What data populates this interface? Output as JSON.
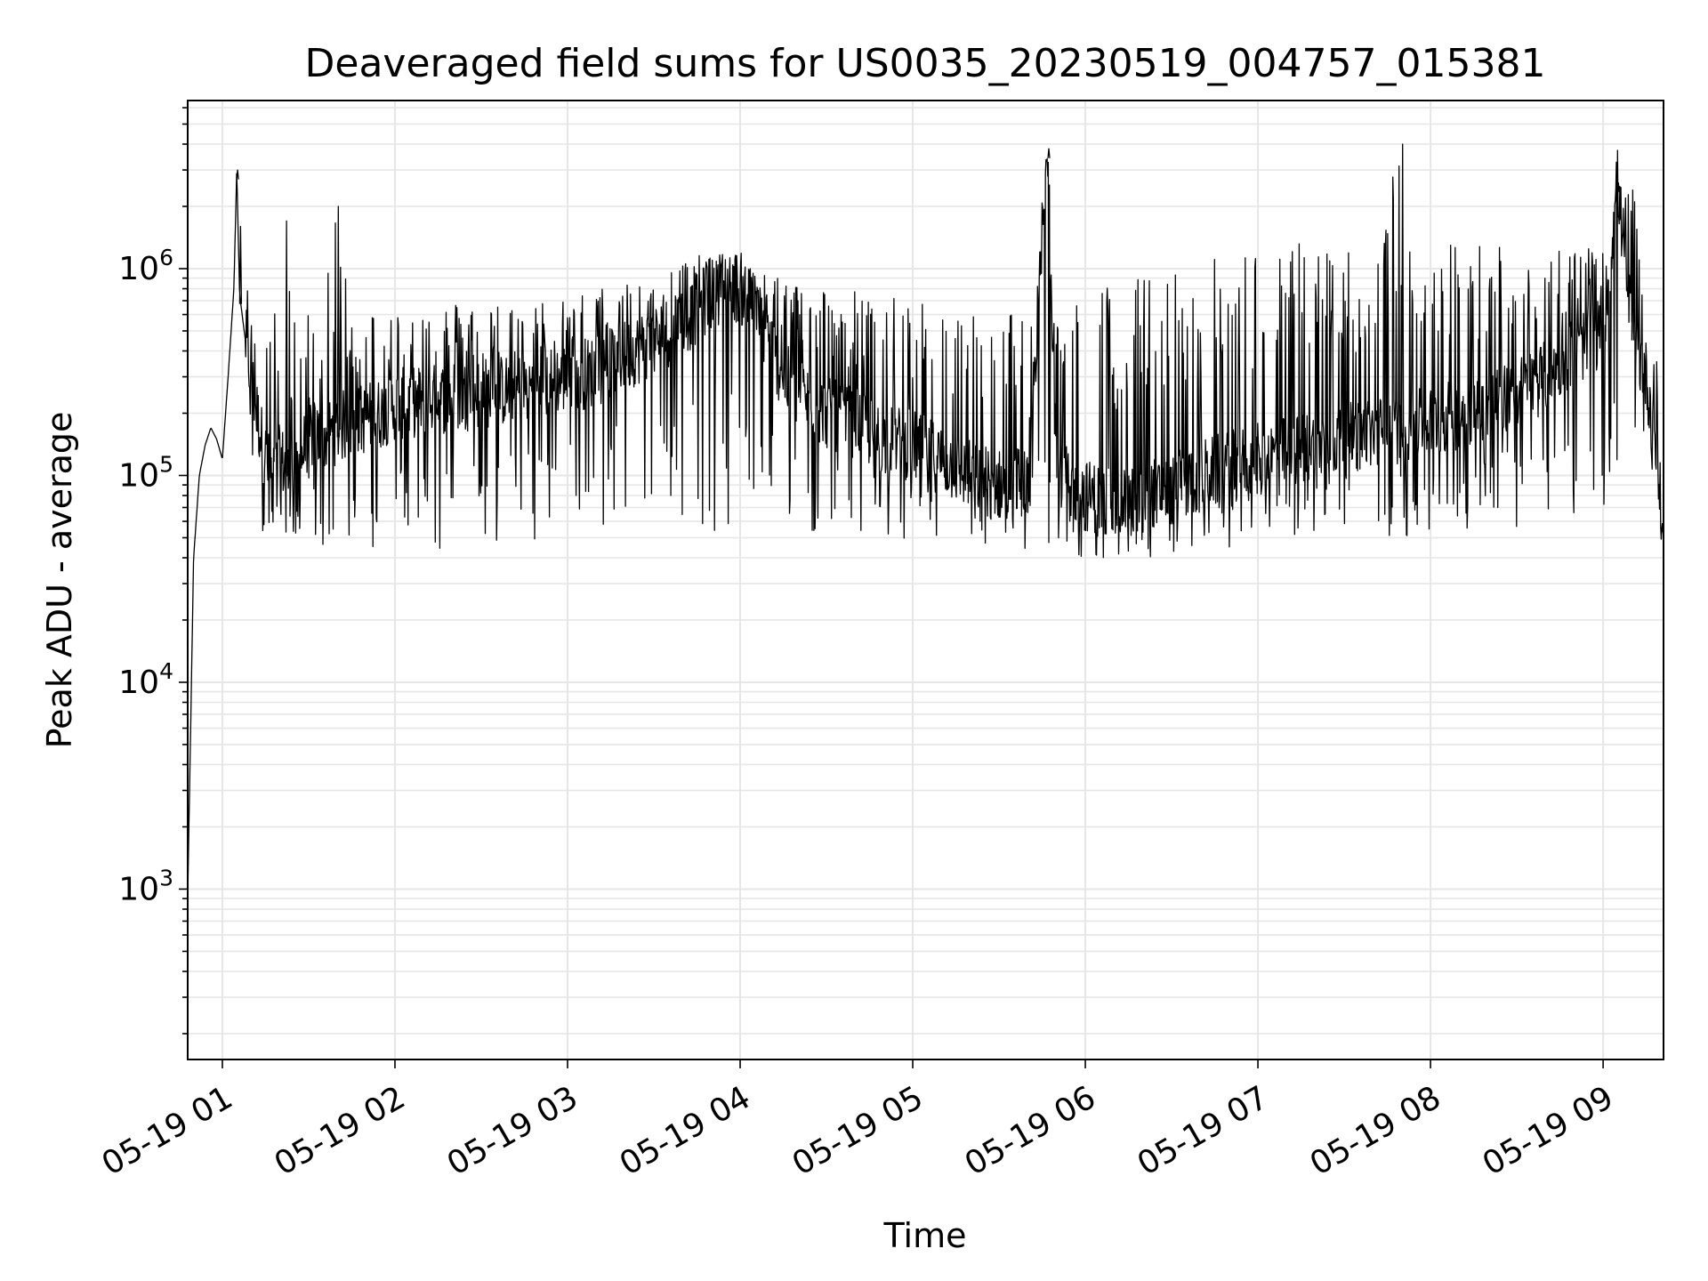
{
  "chart_data": {
    "type": "line",
    "title": "Deaveraged field sums for US0035_20230519_004757_015381",
    "xlabel": "Time",
    "ylabel": "Peak ADU - average",
    "yscale": "log",
    "ylim": [
      150,
      6500000
    ],
    "xlim": [
      "05-19 00:47:57",
      "05-19 09:21:00"
    ],
    "x_ticks": [
      "05-19 01",
      "05-19 02",
      "05-19 03",
      "05-19 04",
      "05-19 05",
      "05-19 06",
      "05-19 07",
      "05-19 08",
      "05-19 09"
    ],
    "y_ticks": [
      {
        "base": "10",
        "exp": "3",
        "value": 1000
      },
      {
        "base": "10",
        "exp": "4",
        "value": 10000
      },
      {
        "base": "10",
        "exp": "5",
        "value": 100000
      },
      {
        "base": "10",
        "exp": "6",
        "value": 1000000
      }
    ],
    "grid": "major and minor",
    "line_color": "#000000",
    "grid_color": "#e6e6e6",
    "series": [
      {
        "x": [
          "00:48",
          "00:50",
          "00:52",
          "00:54",
          "00:56",
          "00:58",
          "01:00",
          "01:02",
          "01:04",
          "01:05",
          "01:06",
          "01:08",
          "01:10",
          "01:12",
          "01:14",
          "01:16",
          "01:18",
          "01:20",
          "01:22",
          "01:24",
          "01:26",
          "01:28",
          "01:30",
          "01:35",
          "01:40",
          "01:45",
          "01:50",
          "01:55",
          "02:00",
          "02:10",
          "02:20",
          "02:30",
          "02:40",
          "02:50",
          "03:00",
          "03:10",
          "03:20",
          "03:30",
          "03:40",
          "03:45",
          "03:50",
          "03:55",
          "04:00",
          "04:05",
          "04:10",
          "04:15",
          "04:20",
          "04:30",
          "04:40",
          "04:50",
          "05:00",
          "05:10",
          "05:20",
          "05:30",
          "05:40",
          "05:47",
          "05:50",
          "06:00",
          "06:10",
          "06:20",
          "06:30",
          "06:40",
          "06:50",
          "07:00",
          "07:10",
          "07:20",
          "07:30",
          "07:40",
          "07:50",
          "08:00",
          "08:10",
          "08:20",
          "08:30",
          "08:40",
          "08:50",
          "09:00",
          "09:05",
          "09:10",
          "09:15",
          "09:18",
          "09:21"
        ],
        "y": [
          1000,
          40000,
          100000,
          140000,
          170000,
          150000,
          120000,
          300000,
          800000,
          3000000,
          750000,
          450000,
          300000,
          200000,
          140000,
          110000,
          100000,
          120000,
          110000,
          90000,
          100000,
          130000,
          160000,
          150000,
          170000,
          180000,
          190000,
          200000,
          220000,
          230000,
          240000,
          250000,
          260000,
          270000,
          300000,
          320000,
          380000,
          450000,
          550000,
          650000,
          750000,
          850000,
          800000,
          650000,
          450000,
          300000,
          250000,
          200000,
          180000,
          150000,
          140000,
          120000,
          100000,
          90000,
          95000,
          3800000,
          100000,
          80000,
          75000,
          80000,
          85000,
          100000,
          110000,
          120000,
          130000,
          140000,
          150000,
          160000,
          170000,
          180000,
          200000,
          220000,
          250000,
          300000,
          400000,
          500000,
          2600000,
          500000,
          300000,
          150000,
          50000
        ],
        "y_spike_upper": [
          null,
          null,
          null,
          null,
          null,
          null,
          null,
          null,
          900000,
          3000000,
          1600000,
          900000,
          700000,
          650000,
          650000,
          650000,
          650000,
          650000,
          1700000,
          650000,
          600000,
          600000,
          650000,
          650000,
          2000000,
          650000,
          650000,
          650000,
          650000,
          700000,
          700000,
          700000,
          700000,
          700000,
          750000,
          800000,
          900000,
          1000000,
          1100000,
          1150000,
          1200000,
          1200000,
          1200000,
          1100000,
          1000000,
          950000,
          900000,
          850000,
          800000,
          750000,
          700000,
          650000,
          650000,
          650000,
          650000,
          3800000,
          700000,
          800000,
          900000,
          950000,
          1000000,
          1100000,
          1200000,
          1300000,
          1350000,
          1400000,
          1400000,
          1450000,
          4000000,
          1450000,
          1450000,
          1400000,
          1400000,
          1400000,
          1300000,
          1200000,
          2600000,
          2400000,
          1200000,
          600000,
          150000
        ],
        "y_spike_lower": [
          null,
          null,
          null,
          null,
          null,
          null,
          null,
          null,
          null,
          null,
          null,
          200000,
          120000,
          60000,
          50000,
          45000,
          45000,
          50000,
          45000,
          40000,
          50000,
          55000,
          50000,
          45000,
          45000,
          40000,
          45000,
          40000,
          45000,
          45000,
          42000,
          45000,
          45000,
          50000,
          50000,
          55000,
          60000,
          60000,
          60000,
          50000,
          45000,
          45000,
          60000,
          55000,
          55000,
          50000,
          50000,
          50000,
          50000,
          50000,
          45000,
          45000,
          42000,
          40000,
          40000,
          40000,
          40000,
          38000,
          38000,
          37000,
          38000,
          45000,
          45000,
          48000,
          50000,
          50000,
          50000,
          50000,
          50000,
          50000,
          55000,
          55000,
          55000,
          60000,
          60000,
          65000,
          70000,
          90000,
          120000,
          100000,
          50000
        ]
      }
    ]
  }
}
